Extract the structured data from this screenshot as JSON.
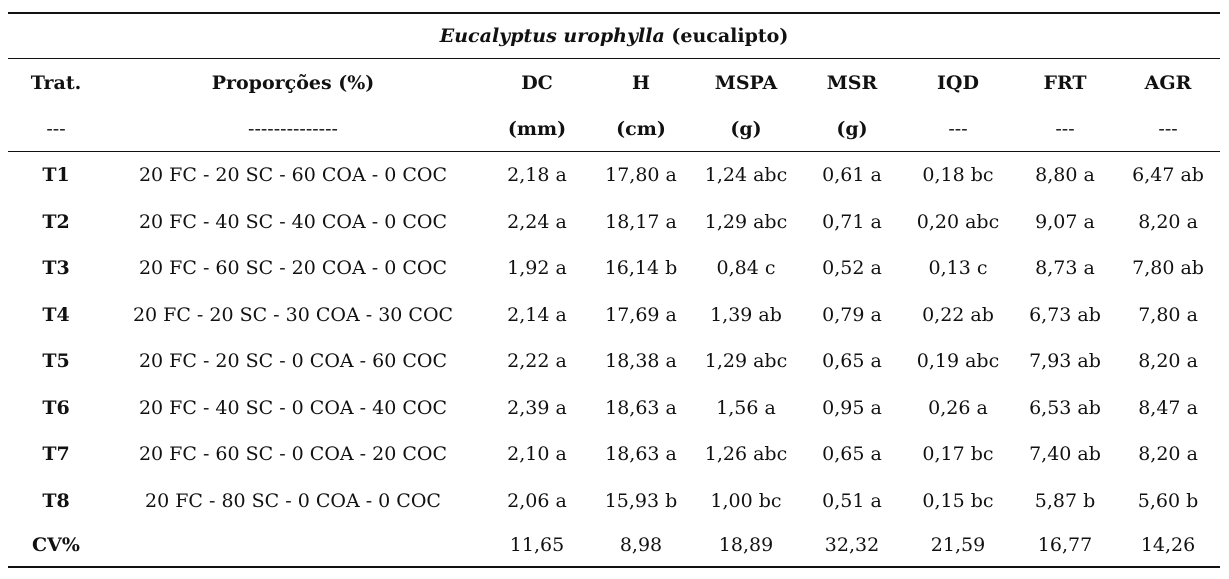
{
  "table": {
    "species_title_italic": "Eucalyptus urophylla",
    "species_title_common": "(eucalipto)",
    "headers": [
      "Trat.",
      "Proporções (%)",
      "DC",
      "H",
      "MSPA",
      "MSR",
      "IQD",
      "FRT",
      "AGR"
    ],
    "units": [
      "---",
      "--------------",
      "(mm)",
      "(cm)",
      "(g)",
      "(g)",
      "---",
      "---",
      "---"
    ],
    "rows": [
      [
        "T1",
        "20 FC - 20 SC - 60 COA - 0 COC",
        "2,18 a",
        "17,80 a",
        "1,24 abc",
        "0,61 a",
        "0,18 bc",
        "8,80 a",
        "6,47 ab"
      ],
      [
        "T2",
        "20 FC - 40 SC - 40 COA - 0 COC",
        "2,24 a",
        "18,17 a",
        "1,29 abc",
        "0,71 a",
        "0,20 abc",
        "9,07 a",
        "8,20 a"
      ],
      [
        "T3",
        "20 FC - 60 SC - 20 COA - 0 COC",
        "1,92 a",
        "16,14 b",
        "0,84 c",
        "0,52 a",
        "0,13 c",
        "8,73 a",
        "7,80 ab"
      ],
      [
        "T4",
        "20 FC - 20 SC - 30 COA - 30 COC",
        "2,14 a",
        "17,69 a",
        "1,39 ab",
        "0,79 a",
        "0,22 ab",
        "6,73 ab",
        "7,80 a"
      ],
      [
        "T5",
        "20 FC - 20 SC - 0 COA - 60 COC",
        "2,22 a",
        "18,38 a",
        "1,29 abc",
        "0,65 a",
        "0,19 abc",
        "7,93 ab",
        "8,20 a"
      ],
      [
        "T6",
        "20 FC - 40 SC - 0 COA - 40 COC",
        "2,39 a",
        "18,63 a",
        "1,56 a",
        "0,95 a",
        "0,26 a",
        "6,53 ab",
        "8,47 a"
      ],
      [
        "T7",
        "20 FC - 60 SC - 0 COA - 20 COC",
        "2,10 a",
        "18,63 a",
        "1,26 abc",
        "0,65 a",
        "0,17 bc",
        "7,40 ab",
        "8,20 a"
      ],
      [
        "T8",
        "20 FC - 80 SC - 0 COA - 0 COC",
        "2,06 a",
        "15,93 b",
        "1,00 bc",
        "0,51 a",
        "0,15 bc",
        "5,87 b",
        "5,60 b"
      ]
    ],
    "cv_row": [
      "CV%",
      "",
      "11,65",
      "8,98",
      "18,89",
      "32,32",
      "21,59",
      "16,77",
      "14,26"
    ]
  }
}
